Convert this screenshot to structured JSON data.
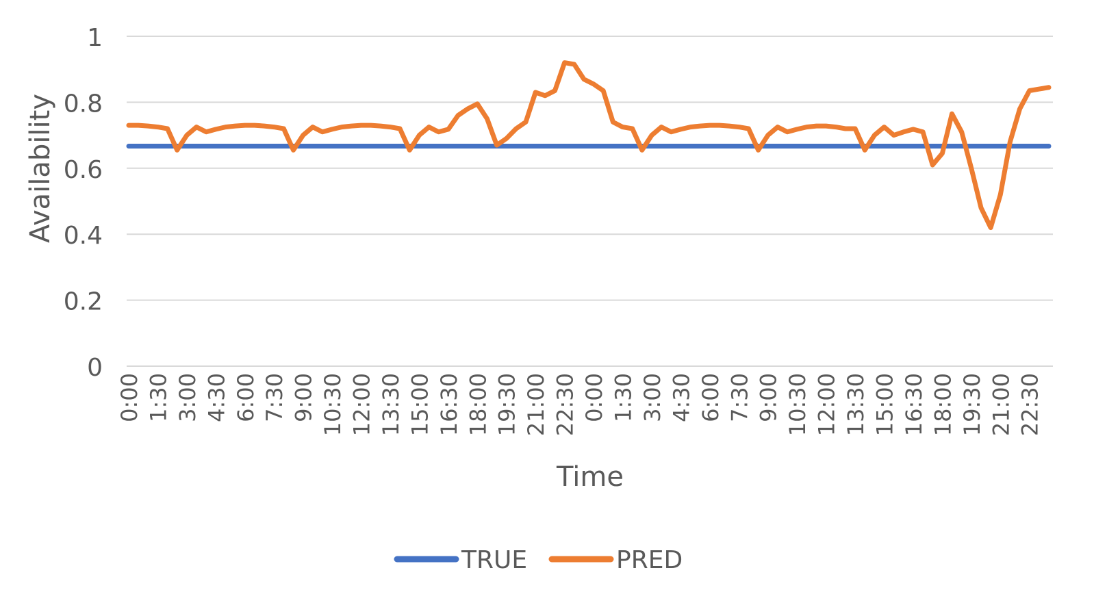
{
  "chart_data": {
    "type": "line",
    "xlabel": "Time",
    "ylabel": "Availability",
    "ylim": [
      0,
      1
    ],
    "yticks": [
      "0",
      "0.2",
      "0.4",
      "0.6",
      "0.8",
      "1"
    ],
    "x_tick_labels": [
      "0:00",
      "1:30",
      "3:00",
      "4:30",
      "6:00",
      "7:30",
      "9:00",
      "10:30",
      "12:00",
      "13:30",
      "15:00",
      "16:30",
      "18:00",
      "19:30",
      "21:00",
      "22:30",
      "0:00",
      "1:30",
      "3:00",
      "4:30",
      "6:00",
      "7:30",
      "9:00",
      "10:30",
      "12:00",
      "13:30",
      "15:00",
      "16:30",
      "18:00",
      "19:30",
      "21:00",
      "22:30"
    ],
    "x_tick_every": 3,
    "num_points": 96,
    "grid": true,
    "legend": "bottom",
    "series": [
      {
        "name": "TRUE",
        "color": "#4472C4",
        "values": [
          0.667,
          0.667,
          0.667,
          0.667,
          0.667,
          0.667,
          0.667,
          0.667,
          0.667,
          0.667,
          0.667,
          0.667,
          0.667,
          0.667,
          0.667,
          0.667,
          0.667,
          0.667,
          0.667,
          0.667,
          0.667,
          0.667,
          0.667,
          0.667,
          0.667,
          0.667,
          0.667,
          0.667,
          0.667,
          0.667,
          0.667,
          0.667,
          0.667,
          0.667,
          0.667,
          0.667,
          0.667,
          0.667,
          0.667,
          0.667,
          0.667,
          0.667,
          0.667,
          0.667,
          0.667,
          0.667,
          0.667,
          0.667,
          0.667,
          0.667,
          0.667,
          0.667,
          0.667,
          0.667,
          0.667,
          0.667,
          0.667,
          0.667,
          0.667,
          0.667,
          0.667,
          0.667,
          0.667,
          0.667,
          0.667,
          0.667,
          0.667,
          0.667,
          0.667,
          0.667,
          0.667,
          0.667,
          0.667,
          0.667,
          0.667,
          0.667,
          0.667,
          0.667,
          0.667,
          0.667,
          0.667,
          0.667,
          0.667,
          0.667,
          0.667,
          0.667,
          0.667,
          0.667,
          0.667,
          0.667,
          0.667,
          0.667,
          0.667,
          0.667,
          0.667,
          0.667
        ]
      },
      {
        "name": "PRED",
        "color": "#ED7D31",
        "values": [
          0.73,
          0.73,
          0.728,
          0.725,
          0.72,
          0.655,
          0.7,
          0.725,
          0.71,
          0.718,
          0.725,
          0.728,
          0.73,
          0.73,
          0.728,
          0.725,
          0.72,
          0.655,
          0.7,
          0.725,
          0.71,
          0.718,
          0.725,
          0.728,
          0.73,
          0.73,
          0.728,
          0.725,
          0.72,
          0.655,
          0.7,
          0.725,
          0.71,
          0.718,
          0.76,
          0.78,
          0.795,
          0.75,
          0.67,
          0.69,
          0.72,
          0.74,
          0.83,
          0.82,
          0.835,
          0.92,
          0.915,
          0.87,
          0.855,
          0.835,
          0.74,
          0.725,
          0.72,
          0.655,
          0.7,
          0.725,
          0.71,
          0.718,
          0.725,
          0.728,
          0.73,
          0.73,
          0.728,
          0.725,
          0.72,
          0.655,
          0.7,
          0.725,
          0.71,
          0.718,
          0.725,
          0.728,
          0.728,
          0.725,
          0.72,
          0.72,
          0.655,
          0.7,
          0.725,
          0.7,
          0.71,
          0.718,
          0.71,
          0.61,
          0.645,
          0.765,
          0.71,
          0.6,
          0.48,
          0.42,
          0.52,
          0.68,
          0.78,
          0.835,
          0.84,
          0.845
        ]
      }
    ]
  }
}
